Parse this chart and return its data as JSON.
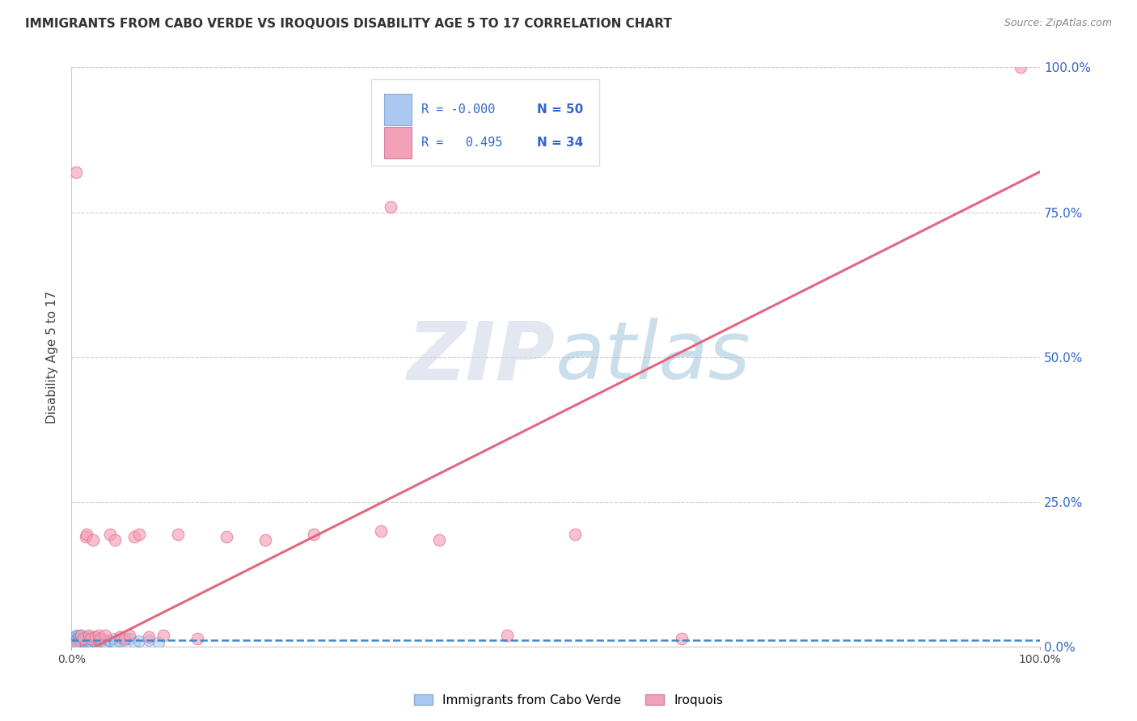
{
  "title": "IMMIGRANTS FROM CABO VERDE VS IROQUOIS DISABILITY AGE 5 TO 17 CORRELATION CHART",
  "source": "Source: ZipAtlas.com",
  "ylabel": "Disability Age 5 to 17",
  "xlim": [
    0,
    1
  ],
  "ylim": [
    0,
    1
  ],
  "cabo_verde_scatter": {
    "color": "#aac8f0",
    "edge_color": "#6090c8",
    "alpha": 0.55,
    "size": 100,
    "x": [
      0.002,
      0.003,
      0.003,
      0.004,
      0.004,
      0.005,
      0.005,
      0.006,
      0.006,
      0.007,
      0.007,
      0.008,
      0.008,
      0.009,
      0.009,
      0.01,
      0.01,
      0.011,
      0.012,
      0.013,
      0.014,
      0.015,
      0.015,
      0.016,
      0.017,
      0.018,
      0.018,
      0.019,
      0.02,
      0.021,
      0.022,
      0.023,
      0.024,
      0.025,
      0.026,
      0.028,
      0.03,
      0.032,
      0.035,
      0.038,
      0.04,
      0.043,
      0.045,
      0.05,
      0.055,
      0.06,
      0.065,
      0.07,
      0.08,
      0.09
    ],
    "y": [
      0.012,
      0.01,
      0.018,
      0.008,
      0.015,
      0.01,
      0.02,
      0.008,
      0.015,
      0.012,
      0.02,
      0.008,
      0.018,
      0.01,
      0.015,
      0.012,
      0.02,
      0.01,
      0.015,
      0.012,
      0.008,
      0.01,
      0.018,
      0.012,
      0.015,
      0.008,
      0.018,
      0.01,
      0.015,
      0.008,
      0.012,
      0.01,
      0.015,
      0.018,
      0.008,
      0.012,
      0.01,
      0.015,
      0.008,
      0.012,
      0.01,
      0.015,
      0.008,
      0.01,
      0.012,
      0.015,
      0.008,
      0.01,
      0.012,
      0.008
    ]
  },
  "iroquois_scatter": {
    "color": "#f4a0b8",
    "edge_color": "#e06880",
    "alpha": 0.65,
    "size": 110,
    "x": [
      0.003,
      0.005,
      0.01,
      0.012,
      0.015,
      0.016,
      0.018,
      0.02,
      0.022,
      0.025,
      0.028,
      0.03,
      0.035,
      0.04,
      0.045,
      0.05,
      0.055,
      0.06,
      0.065,
      0.07,
      0.08,
      0.095,
      0.11,
      0.13,
      0.16,
      0.2,
      0.25,
      0.32,
      0.38,
      0.45,
      0.52,
      0.63,
      0.98,
      0.33
    ],
    "y": [
      0.005,
      0.82,
      0.02,
      0.015,
      0.19,
      0.195,
      0.02,
      0.015,
      0.185,
      0.018,
      0.02,
      0.015,
      0.02,
      0.195,
      0.185,
      0.018,
      0.015,
      0.02,
      0.19,
      0.195,
      0.018,
      0.02,
      0.195,
      0.015,
      0.19,
      0.185,
      0.195,
      0.2,
      0.185,
      0.02,
      0.195,
      0.015,
      1.0,
      0.76
    ]
  },
  "cabo_verde_line": {
    "color": "#4488cc",
    "style": "--",
    "x": [
      0.0,
      1.0
    ],
    "y": [
      0.012,
      0.012
    ]
  },
  "iroquois_line": {
    "color": "#e06880",
    "style": "-",
    "x": [
      0.0,
      1.0
    ],
    "y": [
      -0.02,
      0.82
    ]
  },
  "watermark_zip": "ZIP",
  "watermark_atlas": "atlas",
  "legend_r1": "R = -0.000",
  "legend_n1": "N = 50",
  "legend_r2": "R =   0.495",
  "legend_n2": "N = 34",
  "blue_color": "#3366cc",
  "text_color": "#3366cc",
  "legend_box_color": "#aac8f0",
  "legend_box_pink": "#f4a0b8"
}
